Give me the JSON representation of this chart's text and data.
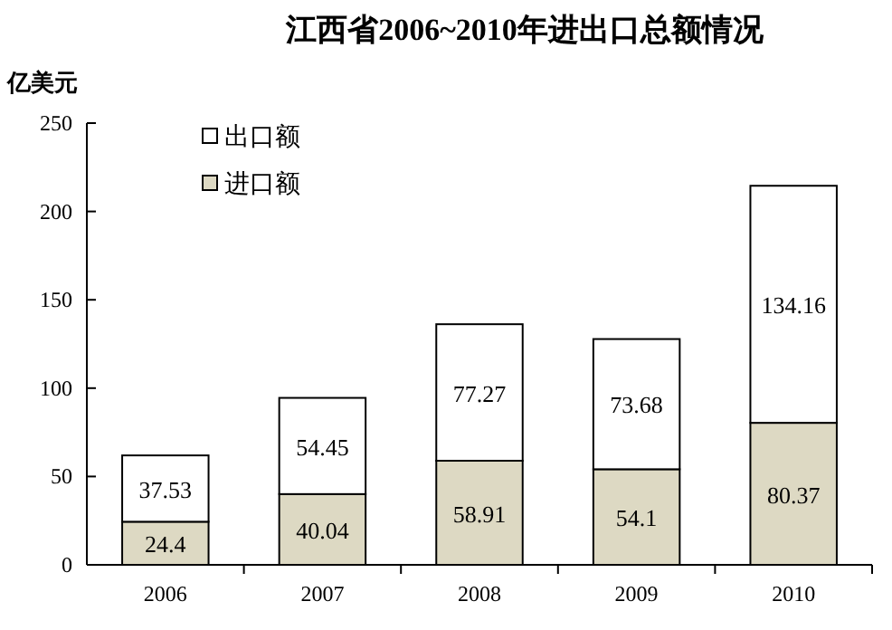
{
  "chart_data": {
    "type": "bar",
    "stacked": true,
    "title": "江西省2006~2010年进出口总额情况",
    "ylabel": "亿美元",
    "categories": [
      "2006",
      "2007",
      "2008",
      "2009",
      "2010"
    ],
    "series": [
      {
        "name": "进口额",
        "color": "#ddd9c3",
        "values": [
          24.4,
          40.04,
          58.91,
          54.1,
          80.37
        ]
      },
      {
        "name": "出口额",
        "color": "#ffffff",
        "values": [
          37.53,
          54.45,
          77.27,
          73.68,
          134.16
        ]
      }
    ],
    "ylim": [
      0,
      250
    ],
    "yticks": [
      0,
      50,
      100,
      150,
      200,
      250
    ],
    "data_labels": true,
    "legend": "top left",
    "grid": false
  }
}
